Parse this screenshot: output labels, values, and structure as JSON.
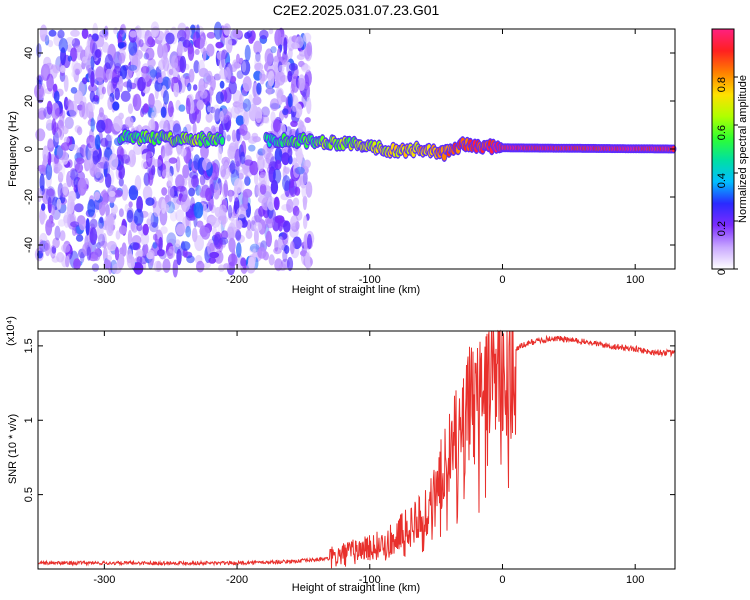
{
  "title": "C2E2.2025.031.07.23.G01",
  "chart_data": [
    {
      "type": "heatmap",
      "xlabel": "Height of straight line (km)",
      "ylabel": "Frequency (Hz)",
      "xlim": [
        -350,
        130
      ],
      "ylim": [
        -50,
        50
      ],
      "xticks": [
        -300,
        -200,
        -100,
        0,
        100
      ],
      "yticks": [
        -40,
        -20,
        0,
        20,
        40
      ],
      "colorbar": {
        "label": "Normalized spectral amplitude",
        "range": [
          0.0,
          1.0
        ],
        "ticks": [
          0.0,
          0.2,
          0.4,
          0.6,
          0.8
        ],
        "colors": [
          "#ffffff",
          "#c9a8ff",
          "#7b2cff",
          "#2a2aff",
          "#00bfff",
          "#00e0a0",
          "#30ff30",
          "#b0ff00",
          "#ffe000",
          "#ff8000",
          "#ff2020",
          "#ff2080"
        ]
      },
      "noise_region_x": [
        -350,
        -145
      ],
      "signal_track": [
        {
          "x": -288,
          "f": 5,
          "amp": 0.5
        },
        {
          "x": -260,
          "f": 4.5,
          "amp": 0.55
        },
        {
          "x": -230,
          "f": 4,
          "amp": 0.6
        },
        {
          "x": -210,
          "f": 3.5,
          "amp": 0.55
        },
        {
          "x": -178,
          "f": 4,
          "amp": 0.45
        },
        {
          "x": -150,
          "f": 3.5,
          "amp": 0.55
        },
        {
          "x": -120,
          "f": 2.5,
          "amp": 0.6
        },
        {
          "x": -100,
          "f": 1.5,
          "amp": 0.65
        },
        {
          "x": -80,
          "f": -1,
          "amp": 0.7
        },
        {
          "x": -60,
          "f": 0,
          "amp": 0.75
        },
        {
          "x": -45,
          "f": -2,
          "amp": 0.8
        },
        {
          "x": -30,
          "f": 2,
          "amp": 0.85
        },
        {
          "x": -15,
          "f": 1,
          "amp": 0.9
        },
        {
          "x": 0,
          "f": 0.5,
          "amp": 0.95
        },
        {
          "x": 130,
          "f": 0,
          "amp": 0.95
        }
      ]
    },
    {
      "type": "line",
      "xlabel": "Height of straight line (km)",
      "ylabel": "SNR (10 * v/v)",
      "scale_label": "(x10⁴)",
      "xlim": [
        -350,
        130
      ],
      "ylim": [
        0,
        1.6
      ],
      "xticks": [
        -300,
        -200,
        -100,
        0,
        100
      ],
      "yticks": [
        0.5,
        1.0,
        1.5
      ],
      "color": "#e8302c",
      "series": [
        {
          "x": [
            -350,
            -300,
            -250,
            -200,
            -160,
            -130,
            -110,
            -90,
            -80,
            -70,
            -60,
            -50,
            -45,
            -40,
            -35,
            -30,
            -25,
            -20,
            -15,
            -10,
            -5,
            0,
            5,
            10,
            20,
            30,
            40,
            60,
            80,
            100,
            110,
            130
          ],
          "y": [
            0.04,
            0.04,
            0.04,
            0.04,
            0.05,
            0.07,
            0.12,
            0.18,
            0.22,
            0.3,
            0.38,
            0.55,
            0.7,
            0.8,
            0.95,
            1.05,
            1.15,
            1.2,
            1.25,
            1.28,
            1.3,
            1.32,
            1.4,
            1.48,
            1.52,
            1.54,
            1.55,
            1.53,
            1.5,
            1.48,
            1.46,
            1.45
          ]
        }
      ]
    }
  ]
}
